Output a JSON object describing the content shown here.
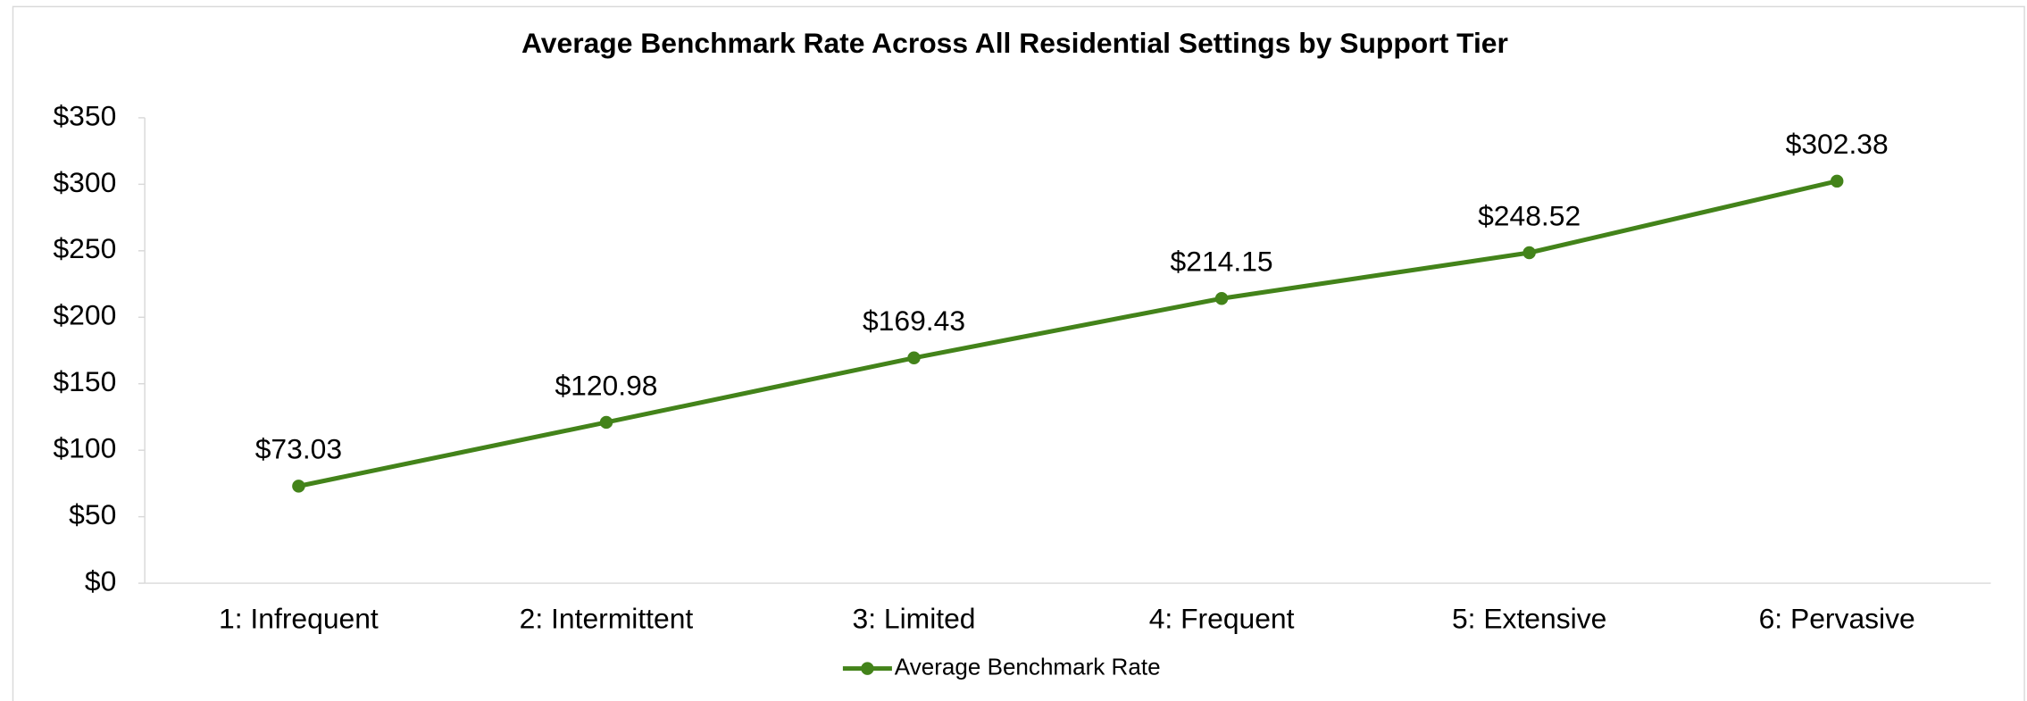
{
  "chart_data": {
    "type": "line",
    "title": "Average Benchmark Rate Across All Residential Settings by Support Tier",
    "categories": [
      "1: Infrequent",
      "2: Intermittent",
      "3: Limited",
      "4: Frequent",
      "5: Extensive",
      "6: Pervasive"
    ],
    "series": [
      {
        "name": "Average Benchmark Rate",
        "color": "#43831a",
        "values": [
          73.03,
          120.98,
          169.43,
          214.15,
          248.52,
          302.38
        ],
        "value_labels": [
          "$73.03",
          "$120.98",
          "$169.43",
          "$214.15",
          "$248.52",
          "$302.38"
        ]
      }
    ],
    "ylim": [
      0,
      350
    ],
    "yticks": [
      {
        "value": 0,
        "label": "$0"
      },
      {
        "value": 50,
        "label": "$50"
      },
      {
        "value": 100,
        "label": "$100"
      },
      {
        "value": 150,
        "label": "$150"
      },
      {
        "value": 200,
        "label": "$200"
      },
      {
        "value": 250,
        "label": "$250"
      },
      {
        "value": 300,
        "label": "$300"
      },
      {
        "value": 350,
        "label": "$350"
      }
    ],
    "grid": false,
    "legend": "bottom"
  }
}
